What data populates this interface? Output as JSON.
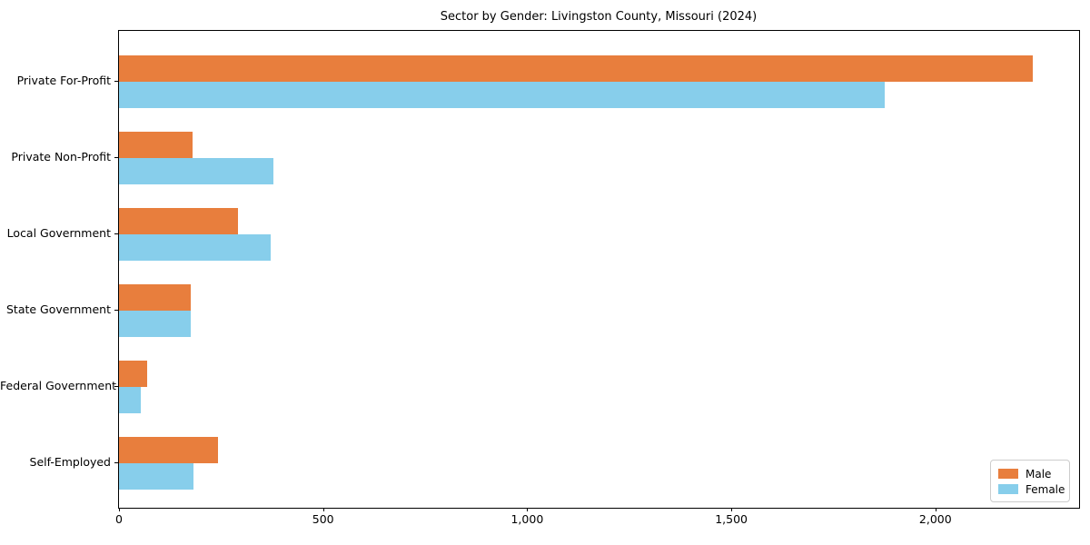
{
  "title": "Sector by Gender: Livingston County, Missouri (2024)",
  "chart_data": {
    "type": "bar",
    "orientation": "horizontal",
    "title": "Sector by Gender: Livingston County, Missouri (2024)",
    "categories": [
      "Private For-Profit",
      "Private Non-Profit",
      "Local Government",
      "State Government",
      "Federal Government",
      "Self-Employed"
    ],
    "series": [
      {
        "name": "Male",
        "color": "#e87e3d",
        "values": [
          2238,
          181,
          291,
          176,
          68,
          243
        ]
      },
      {
        "name": "Female",
        "color": "#87ceeb",
        "values": [
          1875,
          378,
          371,
          176,
          53,
          182
        ]
      }
    ],
    "xlabel": "",
    "ylabel": "",
    "xlim": [
      0,
      2352
    ],
    "xticks": [
      0,
      500,
      1000,
      1500,
      2000
    ],
    "xtick_labels": [
      "0",
      "500",
      "1,000",
      "1,500",
      "2,000"
    ],
    "grid": false,
    "legend_position": "lower right"
  },
  "legend": {
    "items": [
      {
        "label": "Male",
        "color": "#e87e3d"
      },
      {
        "label": "Female",
        "color": "#87ceeb"
      }
    ]
  }
}
